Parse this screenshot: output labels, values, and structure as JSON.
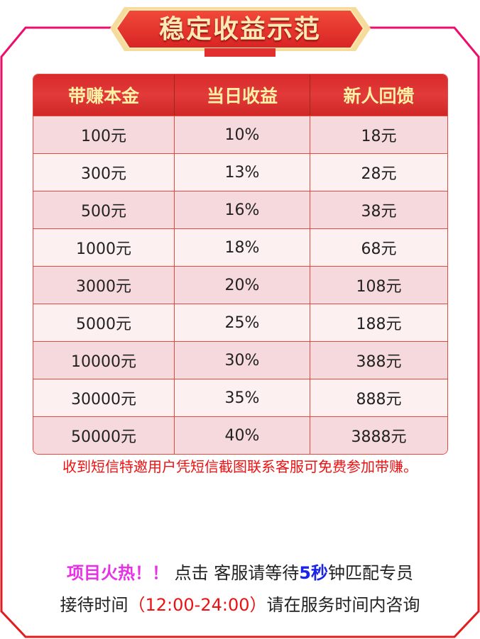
{
  "title": "稳定收益示范",
  "table": {
    "headers": [
      "带赚本金",
      "当日收益",
      "新人回馈"
    ],
    "rows": [
      [
        "100元",
        "10%",
        "18元"
      ],
      [
        "300元",
        "13%",
        "28元"
      ],
      [
        "500元",
        "16%",
        "38元"
      ],
      [
        "1000元",
        "18%",
        "68元"
      ],
      [
        "3000元",
        "20%",
        "108元"
      ],
      [
        "5000元",
        "25%",
        "188元"
      ],
      [
        "10000元",
        "30%",
        "388元"
      ],
      [
        "30000元",
        "35%",
        "888元"
      ],
      [
        "50000元",
        "40%",
        "3888元"
      ]
    ]
  },
  "notice": "收到短信特邀用户凭短信截图联系客服可免费参加带赚。",
  "footer": {
    "hot": "项目火热！！",
    "text1": " 点击 客服请等待",
    "seconds": "5秒",
    "text2": "钟匹配专员",
    "hours_prefix": "接待时间",
    "hours": "（12:00-24:00）",
    "hours_suffix": "请在服务时间内咨询"
  },
  "colors": {
    "frame_top": "#ec0d6e",
    "frame_bottom": "#e41c1c",
    "header": "#dd2f2f",
    "header_text": "#fdf1a6"
  }
}
